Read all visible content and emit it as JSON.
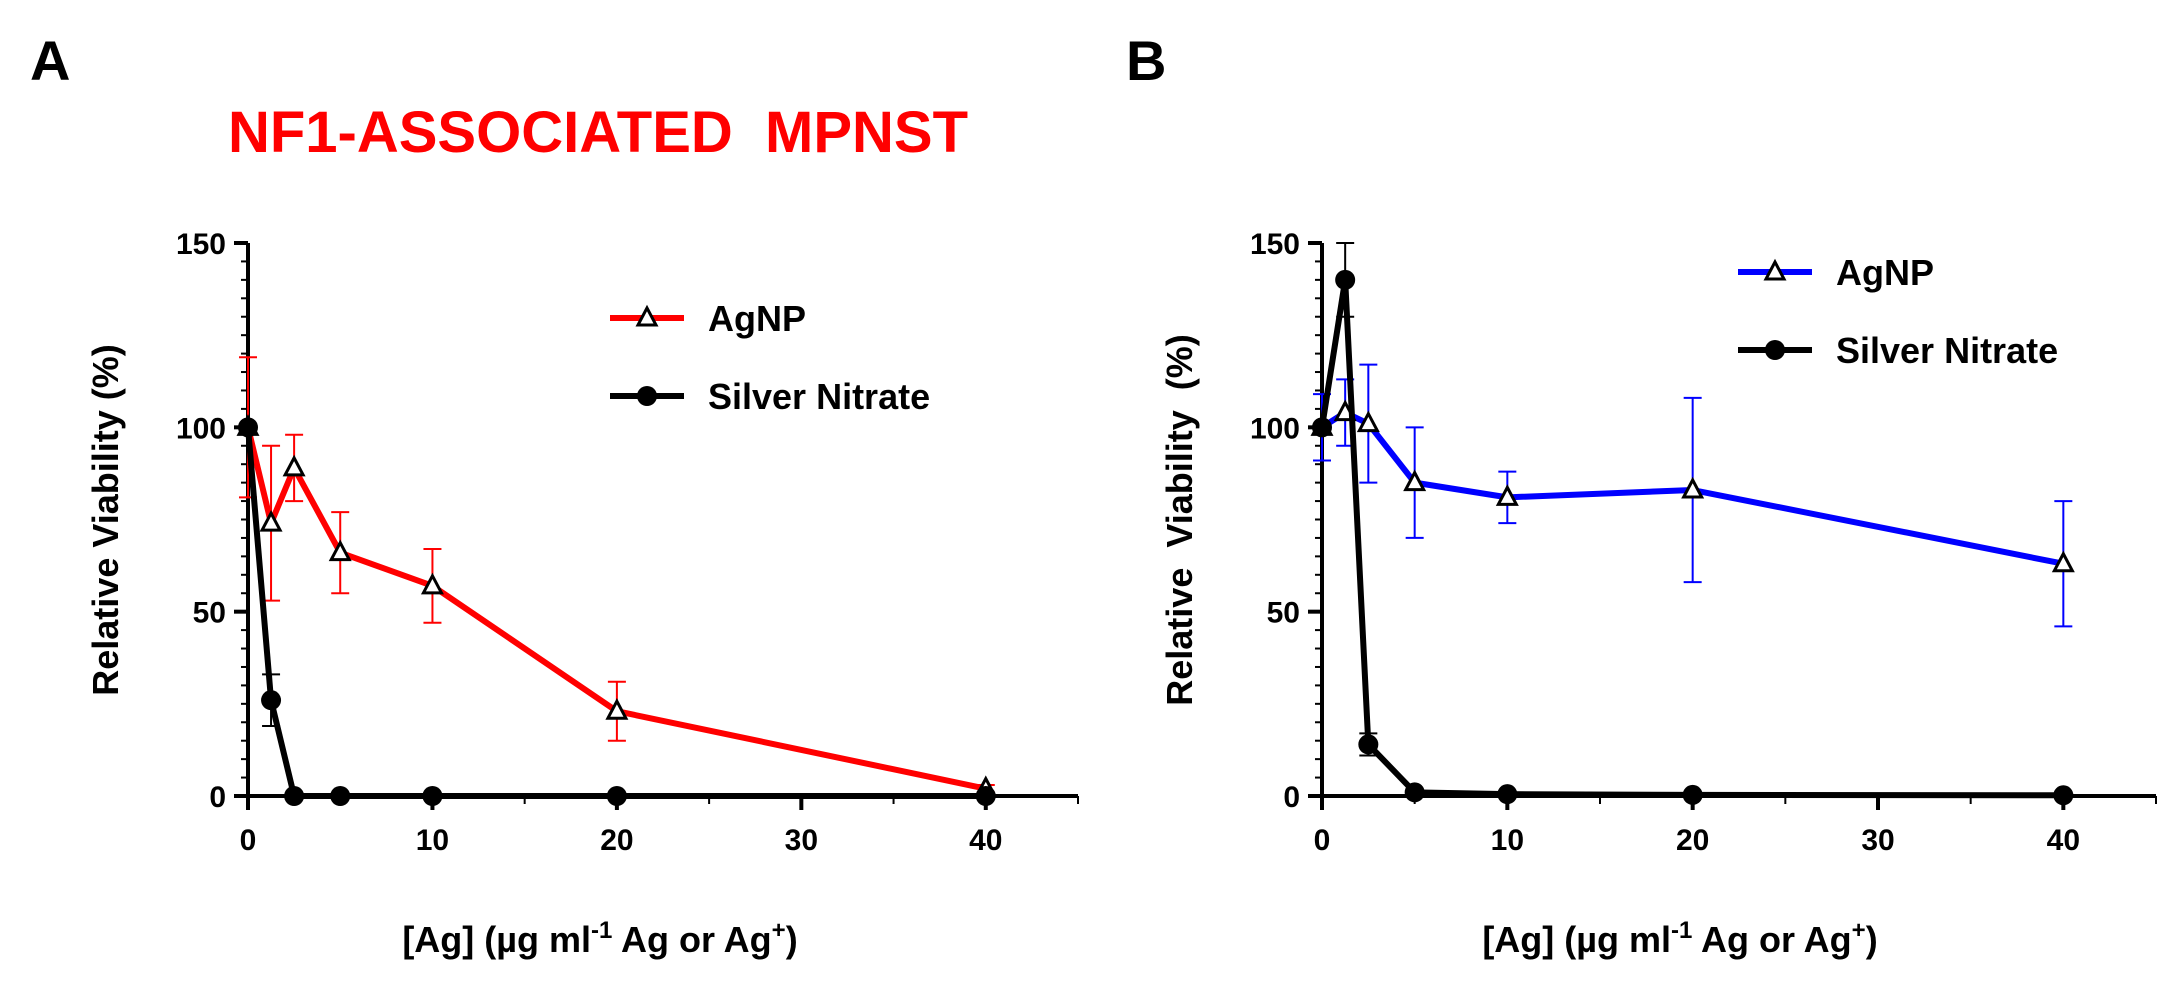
{
  "figure": {
    "title": "NF1-ASSOCIATED  MPNST",
    "title_color": "#ff0000"
  },
  "chart_data": [
    {
      "type": "line",
      "panel_label": "A",
      "xlabel": "[Ag] (µg ml-1 Ag or Ag+)",
      "ylabel": "Relative Viability (%)",
      "xlim": [
        0,
        45
      ],
      "ylim": [
        0,
        150
      ],
      "xticks": [
        0,
        10,
        20,
        30,
        40
      ],
      "yticks": [
        0,
        50,
        100,
        150
      ],
      "legend_position": "top-right",
      "series": [
        {
          "name": "AgNP",
          "color": "#ff0000",
          "marker": "triangle-open",
          "x": [
            0,
            1.25,
            2.5,
            5,
            10,
            20,
            40
          ],
          "values": [
            100,
            74,
            89,
            66,
            57,
            23,
            2
          ],
          "error": [
            19,
            21,
            9,
            11,
            10,
            8,
            1
          ]
        },
        {
          "name": "Silver Nitrate",
          "color": "#000000",
          "marker": "circle-filled",
          "x": [
            0,
            1.25,
            2.5,
            5,
            10,
            20,
            40
          ],
          "values": [
            100,
            26,
            0,
            0,
            0,
            0,
            0
          ],
          "error": [
            0,
            7,
            0,
            0,
            0,
            0,
            0
          ]
        }
      ]
    },
    {
      "type": "line",
      "panel_label": "B",
      "xlabel": "[Ag] (µg ml-1 Ag or Ag+)",
      "ylabel": "Relative  Viability  (%)",
      "xlim": [
        0,
        45
      ],
      "ylim": [
        0,
        150
      ],
      "xticks": [
        0,
        10,
        20,
        30,
        40
      ],
      "yticks": [
        0,
        50,
        100,
        150
      ],
      "legend_position": "top-right",
      "series": [
        {
          "name": "AgNP",
          "color": "#0000ff",
          "marker": "triangle-open",
          "x": [
            0,
            1.25,
            2.5,
            5,
            10,
            20,
            40
          ],
          "values": [
            100,
            104,
            101,
            85,
            81,
            83,
            63
          ],
          "error": [
            9,
            9,
            16,
            15,
            7,
            25,
            17
          ]
        },
        {
          "name": "Silver Nitrate",
          "color": "#000000",
          "marker": "circle-filled",
          "x": [
            0,
            1.25,
            2.5,
            5,
            10,
            20,
            40
          ],
          "values": [
            100,
            140,
            14,
            1,
            0.5,
            0.3,
            0.2
          ],
          "error": [
            0,
            10,
            3,
            0,
            0,
            0,
            0
          ]
        }
      ]
    }
  ]
}
